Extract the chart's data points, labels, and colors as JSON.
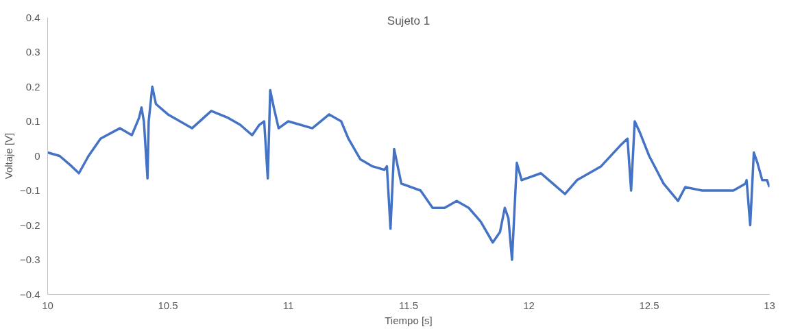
{
  "chart_data": {
    "type": "line",
    "title": "Sujeto 1",
    "xlabel": "Tiempo [s]",
    "ylabel": "Voltaje [V]",
    "series": [
      {
        "color": "#4472c4",
        "x": [
          10.0,
          10.05,
          10.1,
          10.13,
          10.17,
          10.22,
          10.3,
          10.35,
          10.38,
          10.39,
          10.4,
          10.415,
          10.42,
          10.435,
          10.45,
          10.5,
          10.55,
          10.6,
          10.68,
          10.75,
          10.8,
          10.85,
          10.88,
          10.9,
          10.915,
          10.925,
          10.94,
          10.96,
          11.0,
          11.05,
          11.1,
          11.17,
          11.22,
          11.25,
          11.3,
          11.35,
          11.4,
          11.41,
          11.425,
          11.44,
          11.455,
          11.47,
          11.55,
          11.6,
          11.65,
          11.7,
          11.75,
          11.8,
          11.85,
          11.88,
          11.9,
          11.915,
          11.93,
          11.95,
          11.97,
          12.05,
          12.1,
          12.15,
          12.2,
          12.3,
          12.38,
          12.41,
          12.425,
          12.44,
          12.46,
          12.5,
          12.56,
          12.62,
          12.65,
          12.72,
          12.8,
          12.85,
          12.9,
          12.905,
          12.92,
          12.935,
          12.95,
          12.97,
          12.99,
          13.0
        ],
        "values": [
          0.01,
          0.0,
          -0.03,
          -0.05,
          0.0,
          0.05,
          0.08,
          0.06,
          0.11,
          0.14,
          0.1,
          -0.065,
          0.1,
          0.2,
          0.15,
          0.12,
          0.1,
          0.08,
          0.13,
          0.11,
          0.09,
          0.06,
          0.09,
          0.1,
          -0.065,
          0.19,
          0.14,
          0.08,
          0.1,
          0.09,
          0.08,
          0.12,
          0.1,
          0.05,
          -0.01,
          -0.03,
          -0.04,
          -0.03,
          -0.21,
          0.02,
          -0.03,
          -0.08,
          -0.1,
          -0.15,
          -0.15,
          -0.13,
          -0.15,
          -0.19,
          -0.25,
          -0.22,
          -0.15,
          -0.18,
          -0.3,
          -0.02,
          -0.07,
          -0.05,
          -0.08,
          -0.11,
          -0.07,
          -0.03,
          0.03,
          0.05,
          -0.1,
          0.1,
          0.07,
          0.0,
          -0.08,
          -0.13,
          -0.09,
          -0.1,
          -0.1,
          -0.1,
          -0.08,
          -0.07,
          -0.2,
          0.01,
          -0.02,
          -0.07,
          -0.07,
          -0.09
        ]
      }
    ],
    "xlim": [
      10,
      13
    ],
    "xticks": [
      10,
      10.5,
      11,
      11.5,
      12,
      12.5,
      13
    ],
    "ylim": [
      -0.4,
      0.4
    ],
    "yticks": [
      -0.4,
      -0.3,
      -0.2,
      -0.1,
      {
        "value": 0,
        "label": "0"
      },
      0.1,
      0.2,
      0.3,
      0.4
    ],
    "grid": false,
    "marker": "none",
    "line_style": "solid"
  }
}
